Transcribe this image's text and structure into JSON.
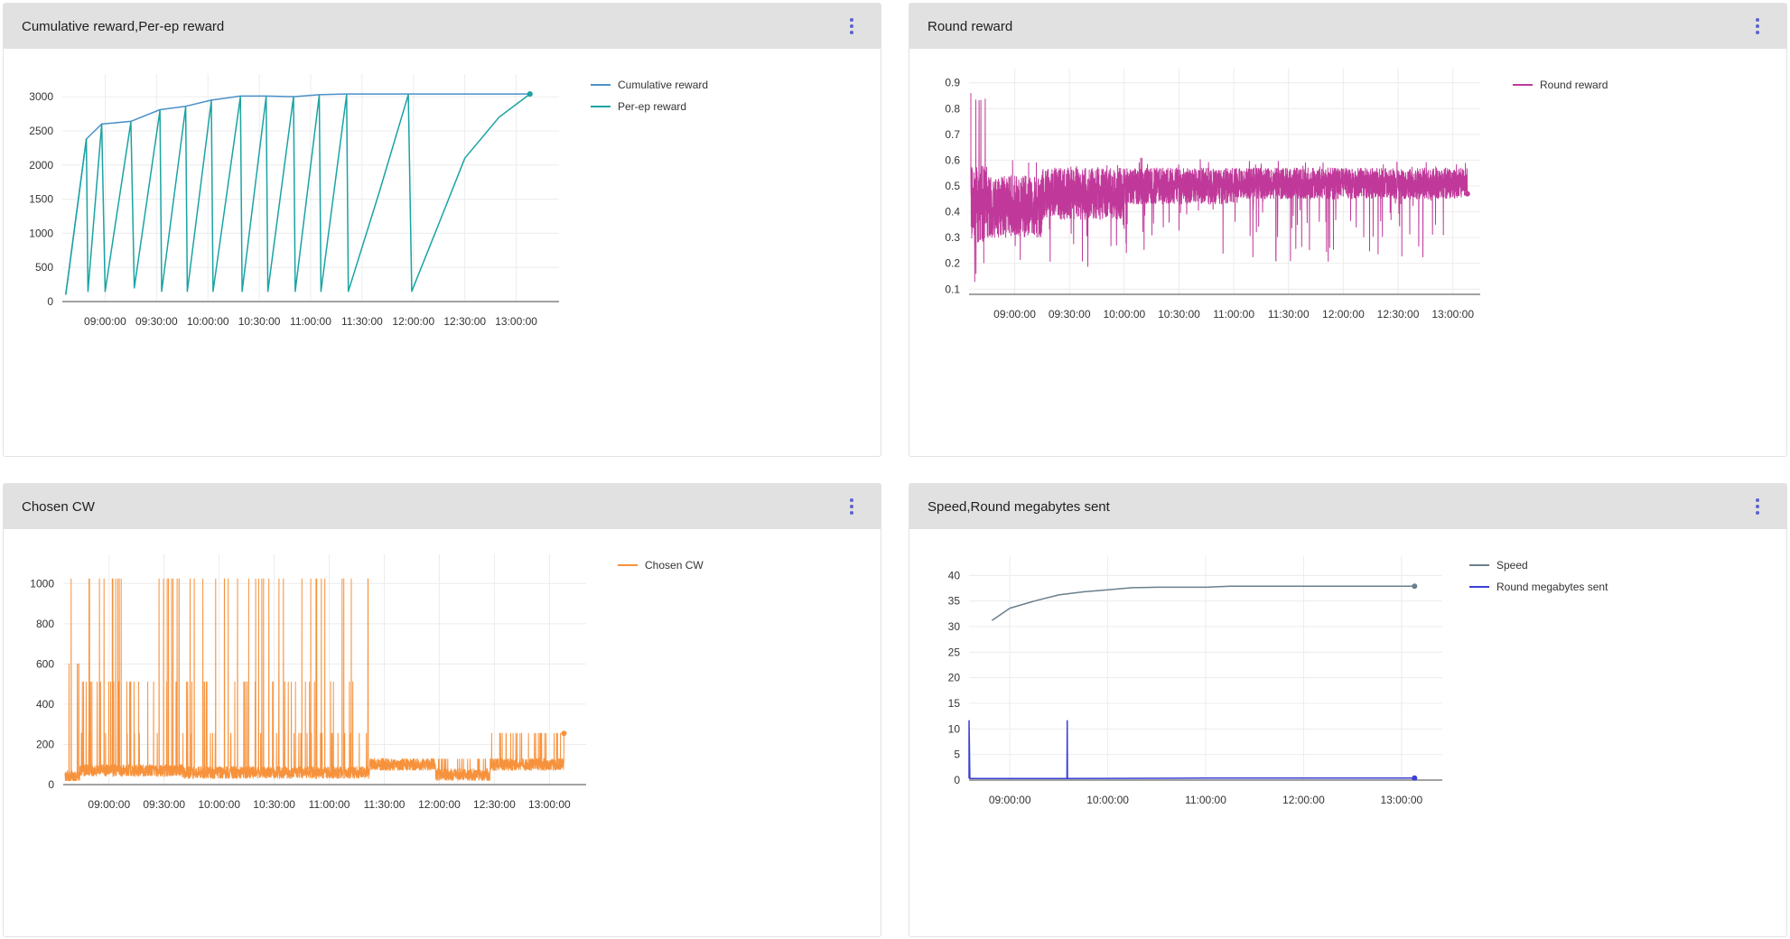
{
  "panels": [
    {
      "title": "Cumulative reward,Per-ep reward",
      "menu_icon": "more-vert-icon"
    },
    {
      "title": "Round reward",
      "menu_icon": "more-vert-icon"
    },
    {
      "title": "Chosen CW",
      "menu_icon": "more-vert-icon"
    },
    {
      "title": "Speed,Round megabytes sent",
      "menu_icon": "more-vert-icon"
    }
  ],
  "colors": {
    "cumulative": "#4a90c8",
    "perep": "#1aa3a3",
    "round": "#c0399a",
    "cw": "#f7923c",
    "speed": "#6b7f8c",
    "mbsent": "#3a3fd6",
    "grid": "#ececec",
    "axis": "#444444",
    "header_bg": "#e1e1e1",
    "menu_dots": "#5b63d3"
  },
  "chart_data": [
    {
      "type": "line",
      "title": "Cumulative reward,Per-ep reward",
      "xlabel": "",
      "ylabel": "",
      "xticks": [
        "09:00:00",
        "09:30:00",
        "10:00:00",
        "10:30:00",
        "11:00:00",
        "11:30:00",
        "12:00:00",
        "12:30:00",
        "13:00:00"
      ],
      "xrange": [
        "08:35:00",
        "13:25:00"
      ],
      "yticks": [
        0,
        500,
        1000,
        1500,
        2000,
        2500,
        3000
      ],
      "ylim": [
        0,
        3200
      ],
      "legend": "top-right",
      "grid": true,
      "series": [
        {
          "name": "Cumulative reward",
          "color_key": "cumulative",
          "points": [
            [
              "08:37:00",
              100
            ],
            [
              "08:49:00",
              2380
            ],
            [
              "08:58:00",
              2600
            ],
            [
              "09:15:00",
              2640
            ],
            [
              "09:32:00",
              2810
            ],
            [
              "09:47:00",
              2860
            ],
            [
              "10:02:00",
              2950
            ],
            [
              "10:19:00",
              3010
            ],
            [
              "10:34:00",
              3010
            ],
            [
              "10:50:00",
              3000
            ],
            [
              "11:05:00",
              3030
            ],
            [
              "11:21:00",
              3040
            ],
            [
              "11:57:00",
              3040
            ],
            [
              "12:30:00",
              3040
            ],
            [
              "13:08:00",
              3040
            ]
          ]
        },
        {
          "name": "Per-ep reward",
          "color_key": "perep",
          "points": [
            [
              "08:37:00",
              100
            ],
            [
              "08:49:00",
              2380
            ],
            [
              "08:50:00",
              150
            ],
            [
              "08:58:00",
              2600
            ],
            [
              "09:00:00",
              150
            ],
            [
              "09:15:00",
              2630
            ],
            [
              "09:17:00",
              200
            ],
            [
              "09:32:00",
              2800
            ],
            [
              "09:33:00",
              150
            ],
            [
              "09:47:00",
              2850
            ],
            [
              "09:48:00",
              150
            ],
            [
              "10:02:00",
              2940
            ],
            [
              "10:03:00",
              150
            ],
            [
              "10:19:00",
              3000
            ],
            [
              "10:20:00",
              150
            ],
            [
              "10:34:00",
              3000
            ],
            [
              "10:35:00",
              150
            ],
            [
              "10:50:00",
              3000
            ],
            [
              "10:51:00",
              150
            ],
            [
              "11:05:00",
              3020
            ],
            [
              "11:06:00",
              150
            ],
            [
              "11:21:00",
              3030
            ],
            [
              "11:22:00",
              150
            ],
            [
              "11:40:00",
              1600
            ],
            [
              "11:57:00",
              3030
            ],
            [
              "11:59:00",
              150
            ],
            [
              "12:15:00",
              1150
            ],
            [
              "12:30:00",
              2100
            ],
            [
              "12:50:00",
              2700
            ],
            [
              "13:08:00",
              3040
            ]
          ]
        }
      ]
    },
    {
      "type": "line",
      "title": "Round reward",
      "xlabel": "",
      "ylabel": "",
      "xticks": [
        "09:00:00",
        "09:30:00",
        "10:00:00",
        "10:30:00",
        "11:00:00",
        "11:30:00",
        "12:00:00",
        "12:30:00",
        "13:00:00"
      ],
      "xrange": [
        "08:35:00",
        "13:15:00"
      ],
      "yticks": [
        0.1,
        0.2,
        0.3,
        0.4,
        0.5,
        0.6,
        0.7,
        0.8,
        0.9
      ],
      "ylim": [
        0.08,
        0.92
      ],
      "legend": "top-right",
      "grid": true,
      "series": [
        {
          "name": "Round reward",
          "color_key": "round",
          "segments": [
            {
              "from": "08:36:00",
              "to": "08:45:00",
              "center": 0.43,
              "amp": 0.15,
              "min": 0.12,
              "max": 0.86
            },
            {
              "from": "08:45:00",
              "to": "09:15:00",
              "center": 0.42,
              "amp": 0.12,
              "min": 0.17,
              "max": 0.6
            },
            {
              "from": "09:15:00",
              "to": "10:00:00",
              "center": 0.47,
              "amp": 0.1,
              "min": 0.18,
              "max": 0.59
            },
            {
              "from": "10:00:00",
              "to": "11:00:00",
              "center": 0.5,
              "amp": 0.07,
              "min": 0.22,
              "max": 0.61
            },
            {
              "from": "11:00:00",
              "to": "13:08:00",
              "center": 0.51,
              "amp": 0.06,
              "min": 0.2,
              "max": 0.6
            }
          ]
        }
      ]
    },
    {
      "type": "line",
      "title": "Chosen CW",
      "xlabel": "",
      "ylabel": "",
      "xticks": [
        "09:00:00",
        "09:30:00",
        "10:00:00",
        "10:30:00",
        "11:00:00",
        "11:30:00",
        "12:00:00",
        "12:30:00",
        "13:00:00"
      ],
      "xrange": [
        "08:35:00",
        "13:20:00"
      ],
      "yticks": [
        0,
        200,
        400,
        600,
        800,
        1000
      ],
      "ylim": [
        0,
        1100
      ],
      "legend": "top-right",
      "grid": true,
      "series": [
        {
          "name": "Chosen CW",
          "color_key": "cw",
          "segments": [
            {
              "from": "08:36:00",
              "to": "08:44:00",
              "base": 40,
              "spikes": [
                1023,
                600
              ]
            },
            {
              "from": "08:44:00",
              "to": "09:40:00",
              "base": 70,
              "spikes": [
                1023,
                511,
                255,
                511,
                1023
              ]
            },
            {
              "from": "09:40:00",
              "to": "10:20:00",
              "base": 60,
              "spikes": [
                1023,
                255,
                511
              ]
            },
            {
              "from": "10:20:00",
              "to": "11:22:00",
              "base": 60,
              "spikes": [
                1023,
                511,
                255
              ]
            },
            {
              "from": "11:22:00",
              "to": "11:58:00",
              "base": 100,
              "spikes": []
            },
            {
              "from": "11:58:00",
              "to": "12:28:00",
              "base": 50,
              "spikes": [
                127
              ]
            },
            {
              "from": "12:28:00",
              "to": "13:08:00",
              "base": 100,
              "spikes": [
                255
              ]
            }
          ]
        }
      ]
    },
    {
      "type": "line",
      "title": "Speed,Round megabytes sent",
      "xlabel": "",
      "ylabel": "",
      "xticks": [
        "09:00:00",
        "10:00:00",
        "11:00:00",
        "12:00:00",
        "13:00:00"
      ],
      "xrange": [
        "08:35:00",
        "13:25:00"
      ],
      "yticks": [
        0,
        5,
        10,
        15,
        20,
        25,
        30,
        35,
        40
      ],
      "ylim": [
        0,
        42
      ],
      "legend": "top-right",
      "grid": true,
      "series": [
        {
          "name": "Speed",
          "color_key": "speed",
          "points": [
            [
              "08:49:00",
              31.2
            ],
            [
              "09:00:00",
              33.6
            ],
            [
              "09:15:00",
              35.0
            ],
            [
              "09:30:00",
              36.2
            ],
            [
              "09:45:00",
              36.8
            ],
            [
              "10:00:00",
              37.2
            ],
            [
              "10:15:00",
              37.6
            ],
            [
              "10:30:00",
              37.7
            ],
            [
              "11:00:00",
              37.7
            ],
            [
              "11:15:00",
              37.9
            ],
            [
              "11:30:00",
              37.9
            ],
            [
              "12:00:00",
              37.9
            ],
            [
              "12:30:00",
              37.9
            ],
            [
              "13:08:00",
              37.9
            ]
          ]
        },
        {
          "name": "Round megabytes sent",
          "color_key": "mbsent",
          "points": [
            [
              "08:35:00",
              0.3
            ],
            [
              "08:35:00",
              11.6
            ],
            [
              "08:35:30",
              0.3
            ],
            [
              "09:35:00",
              0.3
            ],
            [
              "09:35:10",
              11.6
            ],
            [
              "09:35:20",
              0.3
            ],
            [
              "10:30:00",
              0.35
            ],
            [
              "11:00:00",
              0.4
            ],
            [
              "12:00:00",
              0.4
            ],
            [
              "13:08:00",
              0.4
            ]
          ]
        }
      ]
    }
  ]
}
